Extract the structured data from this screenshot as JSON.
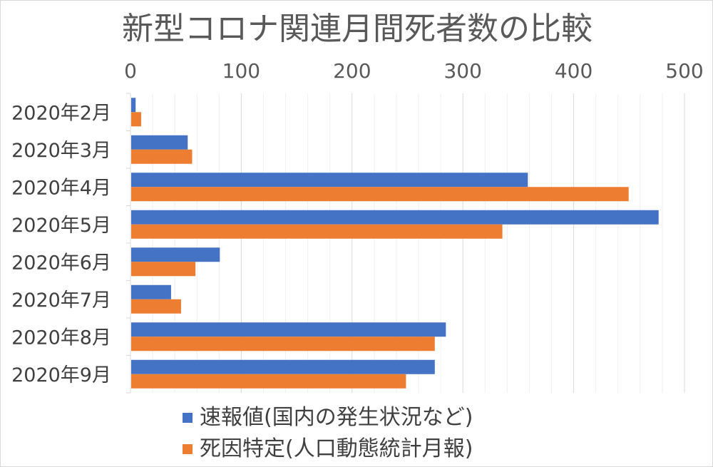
{
  "chart_data": {
    "type": "bar",
    "orientation": "horizontal",
    "title": "新型コロナ関連月間死者数の比較",
    "categories": [
      "2020年2月",
      "2020年3月",
      "2020年4月",
      "2020年5月",
      "2020年6月",
      "2020年7月",
      "2020年8月",
      "2020年9月"
    ],
    "series": [
      {
        "name": "速報値(国内の発生状況など)",
        "color": "#4472c4",
        "values": [
          4,
          51,
          358,
          476,
          80,
          36,
          284,
          274
        ]
      },
      {
        "name": "死因特定(人口動態統計月報)",
        "color": "#ed7d31",
        "values": [
          9,
          55,
          449,
          335,
          58,
          45,
          274,
          248
        ]
      }
    ],
    "xlim": [
      0,
      500
    ],
    "xticks": [
      "0",
      "100",
      "200",
      "300",
      "400",
      "500"
    ],
    "x_axis_position": "top",
    "grid": true,
    "legend_position": "bottom"
  }
}
